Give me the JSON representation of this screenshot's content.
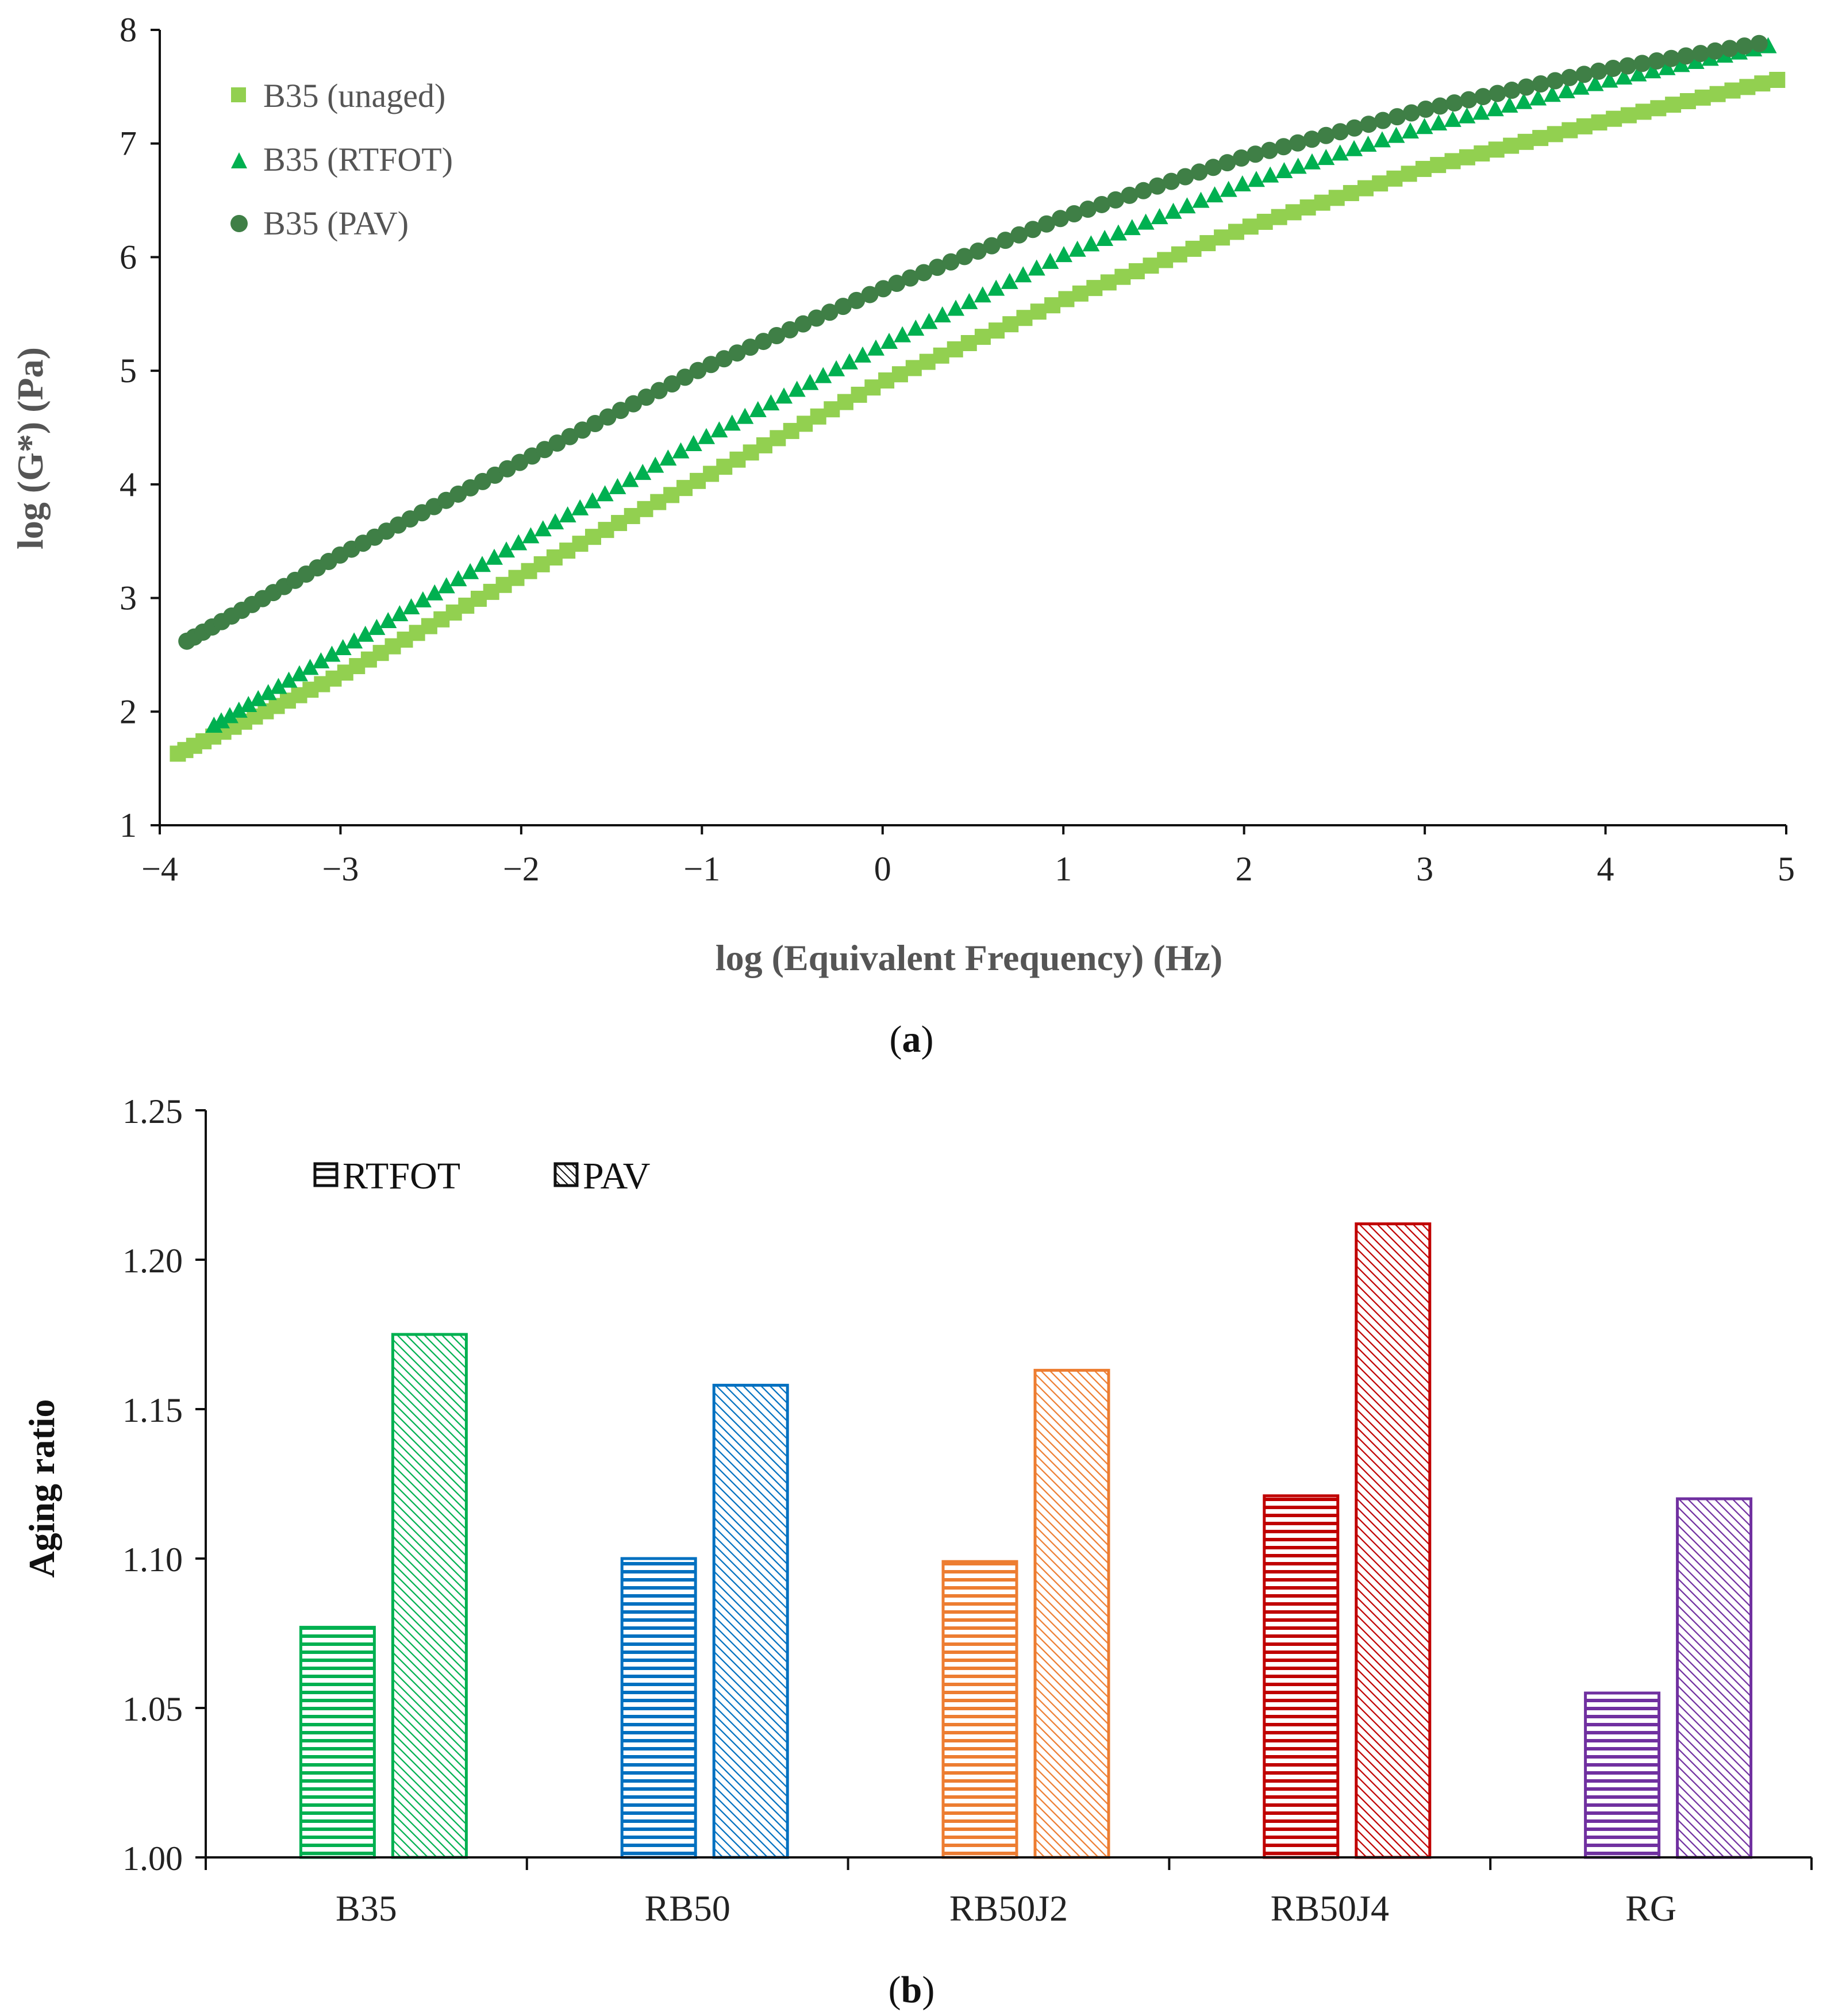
{
  "chart_data": [
    {
      "type": "scatter",
      "caption_letter": "a",
      "xlabel": "log (Equivalent Frequency) (Hz)",
      "ylabel": "log (G*) (Pa)",
      "xlim": [
        -4,
        5
      ],
      "ylim": [
        1,
        8
      ],
      "x_ticks": [
        -4,
        -3,
        -2,
        -1,
        0,
        1,
        2,
        3,
        4,
        5
      ],
      "x_tick_labels": [
        "−4",
        "−3",
        "−2",
        "−1",
        "0",
        "1",
        "2",
        "3",
        "4",
        "5"
      ],
      "y_ticks": [
        1,
        2,
        3,
        4,
        5,
        6,
        7,
        8
      ],
      "y_tick_labels": [
        "1",
        "2",
        "3",
        "4",
        "5",
        "6",
        "7",
        "8"
      ],
      "legend_position": "top-left",
      "series": [
        {
          "name": "B35 (unaged)",
          "marker": "square",
          "color": "#92d050",
          "x_range": [
            -3.9,
            4.95
          ],
          "points": [
            [
              -3.9,
              1.63
            ],
            [
              -3.0,
              2.32
            ],
            [
              -2.0,
              3.2
            ],
            [
              -1.0,
              4.05
            ],
            [
              0.0,
              4.9
            ],
            [
              1.0,
              5.62
            ],
            [
              2.0,
              6.25
            ],
            [
              3.0,
              6.78
            ],
            [
              4.0,
              7.2
            ],
            [
              4.95,
              7.56
            ]
          ]
        },
        {
          "name": "B35 (RTFOT)",
          "marker": "triangle",
          "color": "#00b050",
          "x_range": [
            -3.7,
            4.9
          ],
          "points": [
            [
              -3.7,
              1.88
            ],
            [
              -3.0,
              2.55
            ],
            [
              -2.0,
              3.5
            ],
            [
              -1.0,
              4.4
            ],
            [
              0.0,
              5.23
            ],
            [
              1.0,
              6.02
            ],
            [
              2.0,
              6.65
            ],
            [
              3.0,
              7.15
            ],
            [
              4.0,
              7.55
            ],
            [
              4.9,
              7.86
            ]
          ]
        },
        {
          "name": "B35 (PAV)",
          "marker": "circle",
          "color": "#3f7f46",
          "x_range": [
            -3.85,
            4.85
          ],
          "points": [
            [
              -3.85,
              2.62
            ],
            [
              -3.0,
              3.38
            ],
            [
              -2.0,
              4.2
            ],
            [
              -1.0,
              5.02
            ],
            [
              0.0,
              5.72
            ],
            [
              1.0,
              6.35
            ],
            [
              2.0,
              6.88
            ],
            [
              3.0,
              7.3
            ],
            [
              4.0,
              7.65
            ],
            [
              4.85,
              7.88
            ]
          ]
        }
      ]
    },
    {
      "type": "bar",
      "caption_letter": "b",
      "xlabel": "",
      "ylabel": "Aging ratio",
      "ylim": [
        1.0,
        1.25
      ],
      "y_ticks": [
        1.0,
        1.05,
        1.1,
        1.15,
        1.2,
        1.25
      ],
      "y_tick_labels": [
        "1.00",
        "1.05",
        "1.10",
        "1.15",
        "1.20",
        "1.25"
      ],
      "legend_position": "top-left",
      "categories": [
        "B35",
        "RB50",
        "RB50J2",
        "RB50J4",
        "RG"
      ],
      "category_colors": [
        "#00b050",
        "#0070c0",
        "#ed7d31",
        "#c00000",
        "#7030a0"
      ],
      "series": [
        {
          "name": "RTFOT",
          "pattern": "horizontal-stripes",
          "values": [
            1.077,
            1.1,
            1.099,
            1.121,
            1.055
          ]
        },
        {
          "name": "PAV",
          "pattern": "diagonal-hatch",
          "values": [
            1.175,
            1.158,
            1.163,
            1.212,
            1.12
          ]
        }
      ]
    }
  ]
}
